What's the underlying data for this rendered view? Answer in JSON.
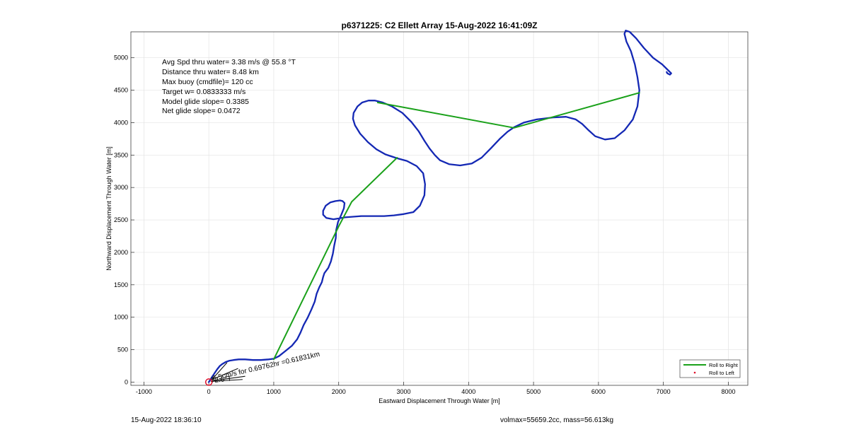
{
  "chart_data": {
    "type": "line",
    "title": "p6371225: C2 Ellett Array 15-Aug-2022 16:41:09Z",
    "xlabel": "Eastward Displacement Through Water [m]",
    "ylabel": "Northward Displacement Through Water [m]",
    "xlim": [
      -1200,
      8300
    ],
    "ylim": [
      -50,
      5400
    ],
    "xticks": [
      -1000,
      0,
      1000,
      2000,
      3000,
      4000,
      5000,
      6000,
      7000,
      8000
    ],
    "yticks": [
      0,
      500,
      1000,
      1500,
      2000,
      2500,
      3000,
      3500,
      4000,
      4500,
      5000
    ],
    "grid": true,
    "legend_position": "bottom-right",
    "legend": [
      {
        "label": "Roll to Right",
        "color": "#1aa11a",
        "style": "line"
      },
      {
        "label": "Roll to Left",
        "color": "#e0102a",
        "style": "dot"
      }
    ],
    "info_lines": [
      "Avg Spd thru water=  3.38 m/s @  55.8 °T",
      "Distance thru water=  8.48 km",
      "Max buoy (cmdfile)= 120 cc",
      "Target w= 0.0833333 m/s",
      "Model glide slope= 0.3385",
      "Net glide slope= 0.0472"
    ],
    "annotation": "6.5cm/s for 0.69762hr =0.61831km",
    "annotation_overlap": "72.6°T",
    "series": [
      {
        "color": "#1428b4",
        "x": [
          0,
          20,
          50,
          90,
          130,
          170,
          210,
          260,
          320,
          380,
          460,
          560,
          680,
          800,
          920,
          1000,
          1080,
          1180,
          1280,
          1360,
          1410,
          1460,
          1520,
          1580,
          1630,
          1660,
          1700,
          1740,
          1760,
          1780,
          1840,
          1880,
          1910,
          1930,
          1955,
          1960,
          1990,
          2040,
          2080,
          2090,
          2060,
          2020,
          1950,
          1870,
          1800,
          1760,
          1760,
          1810,
          1920,
          2100,
          2350,
          2550,
          2700,
          2850,
          3000,
          3150,
          3250,
          3320,
          3330,
          3300,
          3200,
          3050,
          2900,
          2720,
          2580,
          2450,
          2330,
          2250,
          2220,
          2230,
          2290,
          2360,
          2460,
          2560,
          2680,
          2820,
          2980,
          3120,
          3230,
          3320,
          3400,
          3480,
          3560,
          3700,
          3870,
          4050,
          4200,
          4340,
          4480,
          4600,
          4700,
          4850,
          5050,
          5300,
          5500,
          5650,
          5750,
          5850,
          5950,
          6100,
          6250,
          6400,
          6530,
          6600,
          6630,
          6600,
          6560,
          6500,
          6430,
          6400,
          6420,
          6480,
          6580,
          6700,
          6840,
          6980,
          7080,
          7120,
          7100,
          7060,
          7050
        ],
        "y": [
          0,
          30,
          80,
          140,
          200,
          250,
          280,
          310,
          330,
          340,
          350,
          350,
          340,
          340,
          350,
          360,
          400,
          480,
          560,
          660,
          760,
          880,
          990,
          1120,
          1240,
          1360,
          1460,
          1540,
          1620,
          1680,
          1760,
          1860,
          1980,
          2100,
          2220,
          2340,
          2470,
          2580,
          2680,
          2760,
          2790,
          2800,
          2790,
          2770,
          2720,
          2640,
          2580,
          2530,
          2510,
          2540,
          2560,
          2560,
          2560,
          2570,
          2590,
          2620,
          2720,
          2880,
          3050,
          3220,
          3330,
          3410,
          3450,
          3510,
          3590,
          3700,
          3830,
          3960,
          4060,
          4150,
          4250,
          4310,
          4340,
          4340,
          4310,
          4250,
          4150,
          4010,
          3870,
          3720,
          3600,
          3500,
          3420,
          3360,
          3340,
          3370,
          3460,
          3600,
          3750,
          3860,
          3930,
          4000,
          4050,
          4080,
          4090,
          4050,
          3980,
          3880,
          3790,
          3740,
          3760,
          3880,
          4050,
          4250,
          4500,
          4700,
          4900,
          5100,
          5250,
          5370,
          5420,
          5400,
          5300,
          5150,
          5000,
          4900,
          4800,
          4760,
          4740,
          4760,
          4780
        ]
      },
      {
        "name": "Roll to Right",
        "color": "#1aa11a",
        "x": [
          1000,
          2000,
          2200,
          2900,
          null,
          2600,
          4700,
          6630
        ],
        "y": [
          350,
          2400,
          2780,
          3460,
          null,
          4310,
          3920,
          4460
        ]
      }
    ]
  },
  "footer": {
    "left_timestamp": "15-Aug-2022 18:36:10",
    "right_text": "volmax=55659.2cc, mass=56.613kg"
  }
}
